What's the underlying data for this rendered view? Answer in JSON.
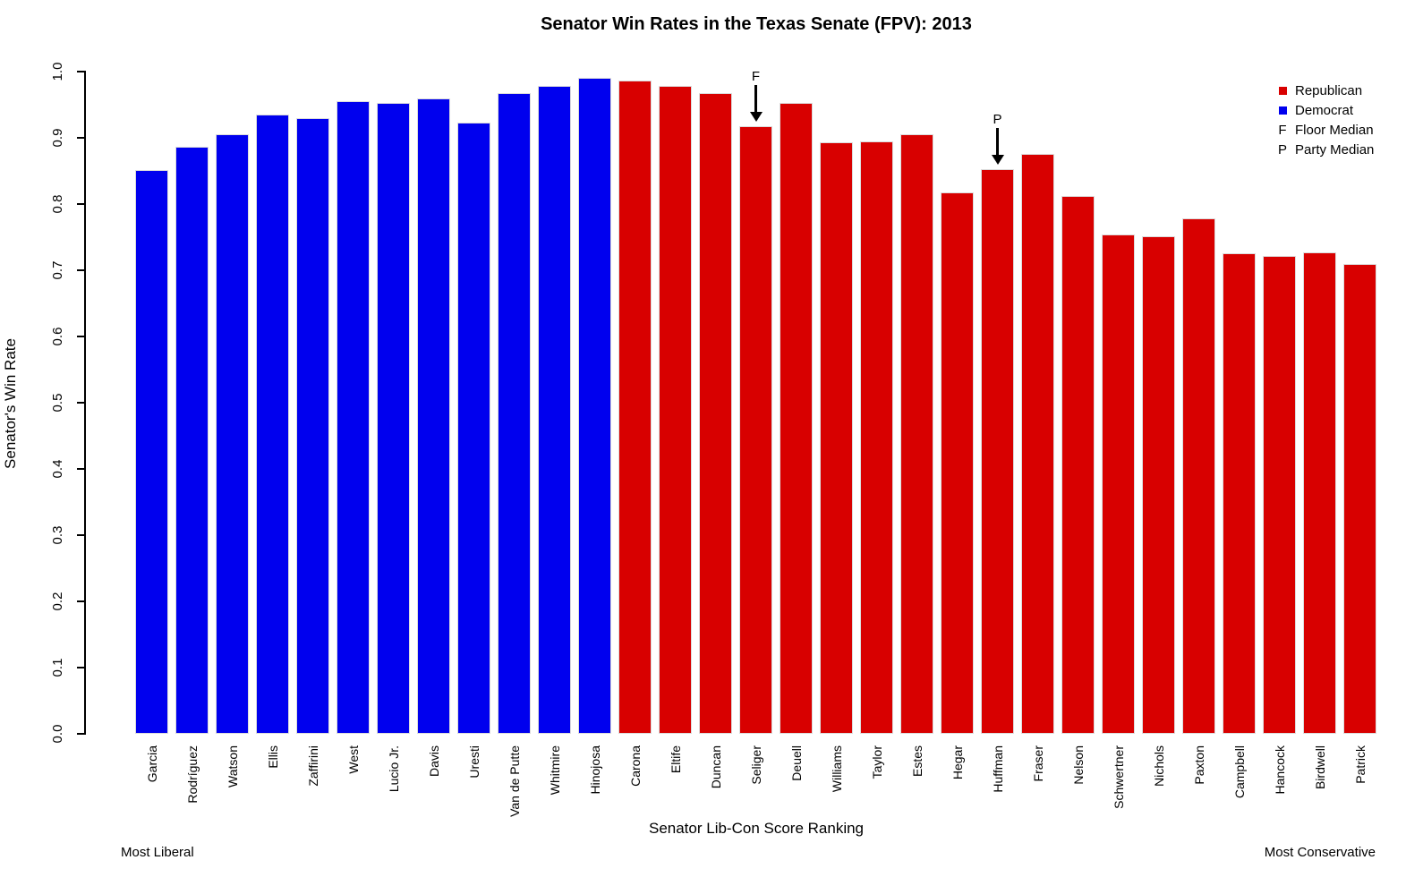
{
  "title": "Senator Win Rates in the Texas Senate (FPV): 2013",
  "x_axis_label": "Senator Lib-Con Score Ranking",
  "y_axis_label": "Senator's Win Rate",
  "x_left_note": "Most Liberal",
  "x_right_note": "Most Conservative",
  "colors": {
    "republican": "#D80000",
    "democrat": "#0000EE",
    "axis": "#000000",
    "background": "#FFFFFF"
  },
  "legend": {
    "items": [
      {
        "symbol": "square",
        "color": "#D80000",
        "label": "Republican"
      },
      {
        "symbol": "square",
        "color": "#0000EE",
        "label": "Democrat"
      },
      {
        "symbol": "F",
        "color": "#000000",
        "label": "Floor Median"
      },
      {
        "symbol": "P",
        "color": "#000000",
        "label": "Party Median"
      }
    ]
  },
  "annotations": [
    {
      "letter": "F",
      "target": "Seliger",
      "meaning": "Floor Median"
    },
    {
      "letter": "P",
      "target": "Huffman",
      "meaning": "Party Median"
    }
  ],
  "chart_data": {
    "type": "bar",
    "title": "Senator Win Rates in the Texas Senate (FPV): 2013",
    "xlabel": "Senator Lib-Con Score Ranking",
    "ylabel": "Senator's Win Rate",
    "ylim": [
      0.0,
      1.0
    ],
    "ytick_labels": [
      "0.0",
      "0.1",
      "0.2",
      "0.3",
      "0.4",
      "0.5",
      "0.6",
      "0.7",
      "0.8",
      "0.9",
      "1.0"
    ],
    "grid": false,
    "legend_position": "top-right",
    "x_ordering_note": "ranked from Most Liberal (left) to Most Conservative (right)",
    "categories": [
      "Garcia",
      "Rodríguez",
      "Watson",
      "Ellis",
      "Zaffirini",
      "West",
      "Lucio Jr.",
      "Davis",
      "Uresti",
      "Van de Putte",
      "Whitmire",
      "Hinojosa",
      "Carona",
      "Eltife",
      "Duncan",
      "Seliger",
      "Deuell",
      "Williams",
      "Taylor",
      "Estes",
      "Hegar",
      "Huffman",
      "Fraser",
      "Nelson",
      "Schwertner",
      "Nichols",
      "Paxton",
      "Campbell",
      "Hancock",
      "Birdwell",
      "Patrick"
    ],
    "parties": [
      "D",
      "D",
      "D",
      "D",
      "D",
      "D",
      "D",
      "D",
      "D",
      "D",
      "D",
      "D",
      "R",
      "R",
      "R",
      "R",
      "R",
      "R",
      "R",
      "R",
      "R",
      "R",
      "R",
      "R",
      "R",
      "R",
      "R",
      "R",
      "R",
      "R",
      "R"
    ],
    "values": [
      0.852,
      0.886,
      0.905,
      0.935,
      0.93,
      0.955,
      0.953,
      0.96,
      0.923,
      0.967,
      0.978,
      0.99,
      0.986,
      0.979,
      0.968,
      0.917,
      0.953,
      0.893,
      0.895,
      0.905,
      0.818,
      0.853,
      0.875,
      0.812,
      0.754,
      0.752,
      0.778,
      0.725,
      0.721,
      0.727,
      0.71
    ]
  }
}
